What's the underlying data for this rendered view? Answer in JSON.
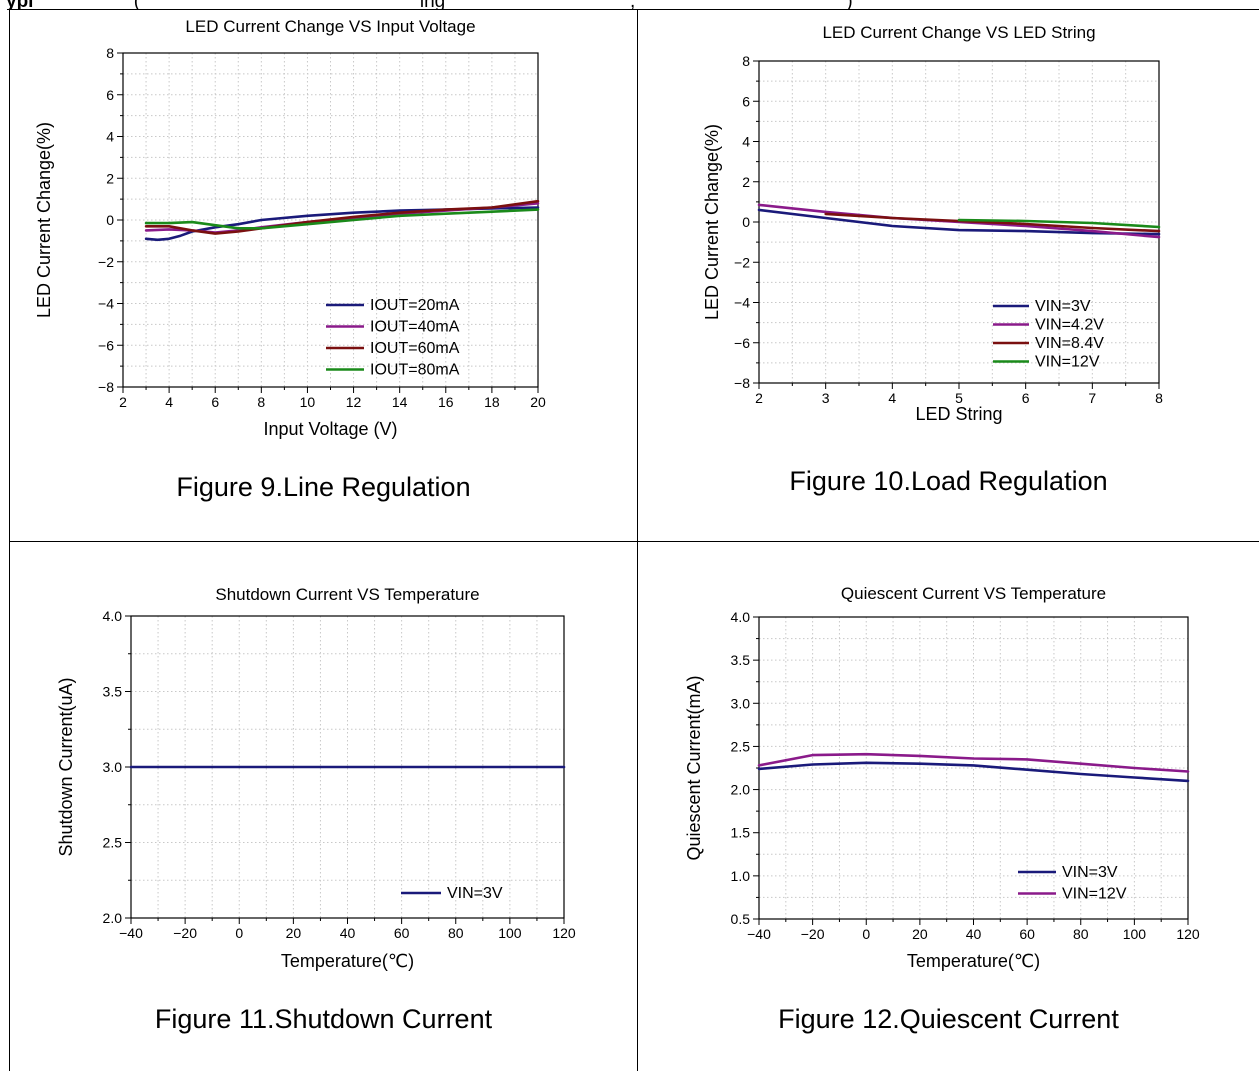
{
  "header": {
    "bold": "ypi",
    "rest": "                   (                                                     ing                                   ,                                        )"
  },
  "chart_data": [
    {
      "id": "fig9",
      "type": "line",
      "title": "LED Current Change VS Input Voltage",
      "xlabel": "Input Voltage (V)",
      "ylabel": "LED Current Change(%)",
      "xlim": [
        2,
        20
      ],
      "ylim": [
        -8,
        8
      ],
      "xticks": [
        2,
        4,
        6,
        8,
        10,
        12,
        14,
        16,
        18,
        20
      ],
      "yticks": [
        -8,
        -6,
        -4,
        -2,
        0,
        2,
        4,
        6,
        8
      ],
      "grid": true,
      "legend_position": "bottom-right",
      "caption": "Figure 9.Line Regulation",
      "series": [
        {
          "name": "IOUT=20mA",
          "color": "#1a1a7a",
          "x": [
            3,
            3.5,
            4,
            4.5,
            5,
            6,
            7,
            8,
            10,
            12,
            14,
            16,
            18,
            20
          ],
          "y": [
            -0.9,
            -0.95,
            -0.9,
            -0.75,
            -0.55,
            -0.35,
            -0.2,
            0,
            0.2,
            0.35,
            0.45,
            0.5,
            0.55,
            0.6
          ]
        },
        {
          "name": "IOUT=40mA",
          "color": "#8a1a8a",
          "x": [
            3,
            4,
            5,
            6,
            7,
            8,
            10,
            12,
            14,
            16,
            18,
            20
          ],
          "y": [
            -0.5,
            -0.45,
            -0.5,
            -0.6,
            -0.5,
            -0.35,
            -0.1,
            0.1,
            0.3,
            0.45,
            0.6,
            0.8
          ]
        },
        {
          "name": "IOUT=60mA",
          "color": "#7a1010",
          "x": [
            3,
            4,
            5,
            6,
            7,
            8,
            10,
            12,
            14,
            16,
            18,
            20
          ],
          "y": [
            -0.3,
            -0.3,
            -0.5,
            -0.65,
            -0.55,
            -0.4,
            -0.1,
            0.15,
            0.35,
            0.5,
            0.6,
            0.9
          ]
        },
        {
          "name": "IOUT=80mA",
          "color": "#1a8a1a",
          "x": [
            3,
            4,
            5,
            6,
            7,
            8,
            10,
            12,
            14,
            16,
            18,
            20
          ],
          "y": [
            -0.15,
            -0.15,
            -0.1,
            -0.25,
            -0.4,
            -0.4,
            -0.2,
            0,
            0.2,
            0.3,
            0.4,
            0.5
          ]
        }
      ]
    },
    {
      "id": "fig10",
      "type": "line",
      "title": "LED Current Change VS LED String",
      "xlabel": "LED String",
      "ylabel": "LED Current Change(%)",
      "xlim": [
        2,
        8
      ],
      "ylim": [
        -8,
        8
      ],
      "xticks": [
        2,
        3,
        4,
        5,
        6,
        7,
        8
      ],
      "yticks": [
        -8,
        -6,
        -4,
        -2,
        0,
        2,
        4,
        6,
        8
      ],
      "grid": true,
      "legend_position": "bottom-right",
      "caption": "Figure 10.Load Regulation",
      "series": [
        {
          "name": "VIN=3V",
          "color": "#1a1a7a",
          "x": [
            2,
            3,
            4,
            5,
            6,
            7,
            8
          ],
          "y": [
            0.6,
            0.2,
            -0.2,
            -0.4,
            -0.45,
            -0.55,
            -0.6
          ]
        },
        {
          "name": "VIN=4.2V",
          "color": "#8a1a8a",
          "x": [
            2,
            3,
            4,
            5,
            6,
            7,
            8
          ],
          "y": [
            0.85,
            0.5,
            0.2,
            0,
            -0.2,
            -0.45,
            -0.75
          ]
        },
        {
          "name": "VIN=8.4V",
          "color": "#7a1010",
          "x": [
            3,
            4,
            5,
            6,
            7,
            8
          ],
          "y": [
            0.4,
            0.2,
            0.05,
            -0.1,
            -0.3,
            -0.45
          ]
        },
        {
          "name": "VIN=12V",
          "color": "#1a8a1a",
          "x": [
            5,
            6,
            7,
            8
          ],
          "y": [
            0.1,
            0.05,
            -0.05,
            -0.25
          ]
        }
      ]
    },
    {
      "id": "fig11",
      "type": "line",
      "title": "Shutdown Current VS Temperature",
      "xlabel": "Temperature(℃)",
      "ylabel": "Shutdown Current(uA)",
      "xlim": [
        -40,
        120
      ],
      "ylim": [
        2.0,
        4.0
      ],
      "xticks": [
        -40,
        -20,
        0,
        20,
        40,
        60,
        80,
        100,
        120
      ],
      "yticks": [
        2.0,
        2.5,
        3.0,
        3.5,
        4.0
      ],
      "ytick_labels": [
        "2.0",
        "2.5",
        "3.0",
        "3.5",
        "4.0"
      ],
      "grid": true,
      "legend_position": "bottom-right",
      "caption": "Figure 11.Shutdown Current",
      "series": [
        {
          "name": "VIN=3V",
          "color": "#1a1a7a",
          "x": [
            -40,
            120
          ],
          "y": [
            3.0,
            3.0
          ]
        }
      ]
    },
    {
      "id": "fig12",
      "type": "line",
      "title": "Quiescent Current VS Temperature",
      "xlabel": "Temperature(℃)",
      "ylabel": "Quiescent Current(mA)",
      "xlim": [
        -40,
        120
      ],
      "ylim": [
        0.5,
        4.0
      ],
      "xticks": [
        -40,
        -20,
        0,
        20,
        40,
        60,
        80,
        100,
        120
      ],
      "yticks": [
        0.5,
        1.0,
        1.5,
        2.0,
        2.5,
        3.0,
        3.5,
        4.0
      ],
      "ytick_labels": [
        "0.5",
        "1.0",
        "1.5",
        "2.0",
        "2.5",
        "3.0",
        "3.5",
        "4.0"
      ],
      "grid": true,
      "legend_position": "bottom-right",
      "caption": "Figure 12.Quiescent Current",
      "series": [
        {
          "name": "VIN=3V",
          "color": "#1a1a7a",
          "x": [
            -40,
            -20,
            0,
            20,
            40,
            60,
            80,
            100,
            120
          ],
          "y": [
            2.24,
            2.29,
            2.31,
            2.3,
            2.28,
            2.23,
            2.18,
            2.14,
            2.1
          ]
        },
        {
          "name": "VIN=12V",
          "color": "#8a1a8a",
          "x": [
            -40,
            -20,
            0,
            20,
            40,
            60,
            80,
            100,
            120
          ],
          "y": [
            2.28,
            2.4,
            2.41,
            2.39,
            2.36,
            2.35,
            2.3,
            2.25,
            2.21
          ]
        }
      ]
    }
  ]
}
